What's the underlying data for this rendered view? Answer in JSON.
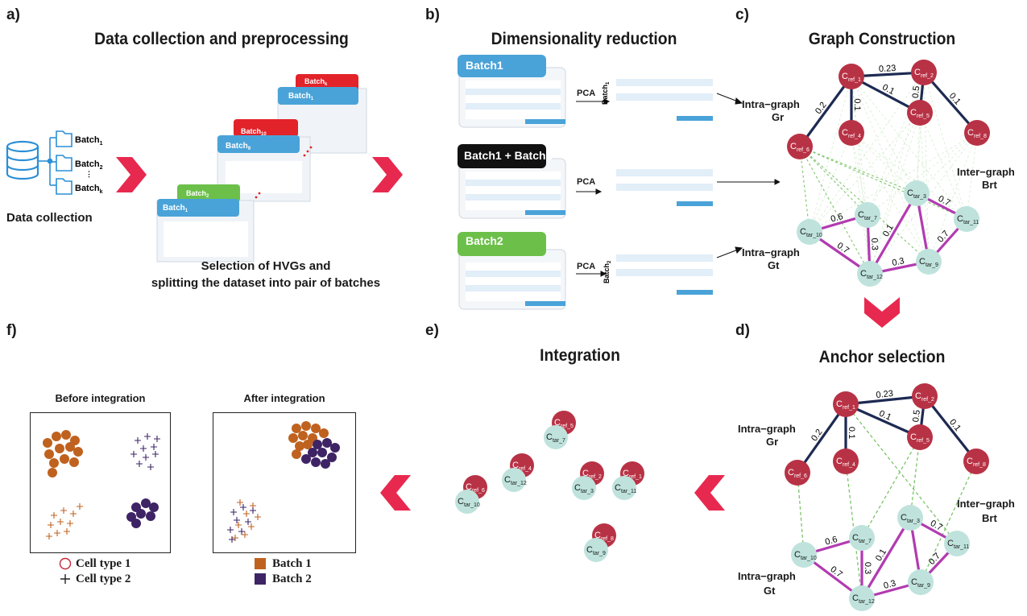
{
  "panels": {
    "a": {
      "label": "a)",
      "title": "Data collection and preprocessing",
      "data_collection": "Data collection",
      "hvg_line1": "Selection of HVGs and",
      "hvg_line2": "splitting the dataset into pair of batches",
      "folders": [
        "Batch1",
        "Batch2",
        "Batchk"
      ]
    },
    "b": {
      "label": "b)",
      "title": "Dimensionality reduction",
      "pca": "PCA",
      "tabs": [
        "Batch1",
        "Batch1 + Batch2",
        "Batch2"
      ]
    },
    "c": {
      "label": "c)",
      "title": "Graph Construction",
      "intra_r": "Intra−graph",
      "intra_r_sym": "Gr",
      "inter": "Inter−graph",
      "inter_sym": "Brt",
      "intra_t": "Intra−graph",
      "intra_t_sym": "Gt"
    },
    "d": {
      "label": "d)",
      "title": "Anchor selection",
      "intra_r": "Intra−graph",
      "intra_r_sym": "Gr",
      "inter": "Inter−graph",
      "inter_sym": "Brt",
      "intra_t": "Intra−graph",
      "intra_t_sym": "Gt"
    },
    "e": {
      "label": "e)",
      "title": "Integration"
    },
    "f": {
      "label": "f)",
      "before": "Before integration",
      "after": "After integration",
      "legend_left": [
        "Cell type 1",
        "Cell type 2"
      ],
      "legend_right": [
        "Batch 1",
        "Batch 2"
      ]
    }
  },
  "graph": {
    "ref_nodes": [
      "ref_1",
      "ref_2",
      "ref_4",
      "ref_5",
      "ref_6",
      "ref_8"
    ],
    "tar_nodes": [
      "tar_3",
      "tar_7",
      "tar_9",
      "tar_10",
      "tar_11",
      "tar_12"
    ],
    "ref_edges": [
      {
        "from": "ref_1",
        "to": "ref_2",
        "w": "0.23"
      },
      {
        "from": "ref_1",
        "to": "ref_5",
        "w": "0.1"
      },
      {
        "from": "ref_2",
        "to": "ref_5",
        "w": "0.5"
      },
      {
        "from": "ref_1",
        "to": "ref_4",
        "w": "0.1"
      },
      {
        "from": "ref_1",
        "to": "ref_6",
        "w": "0.2"
      },
      {
        "from": "ref_2",
        "to": "ref_8",
        "w": "0.1"
      }
    ],
    "tar_edges": [
      {
        "from": "tar_10",
        "to": "tar_7",
        "w": "0.6"
      },
      {
        "from": "tar_10",
        "to": "tar_12",
        "w": "0.7"
      },
      {
        "from": "tar_7",
        "to": "tar_12",
        "w": "0.3"
      },
      {
        "from": "tar_3",
        "to": "tar_12",
        "w": "0.1"
      },
      {
        "from": "tar_3",
        "to": "tar_11",
        "w": "0.7"
      },
      {
        "from": "tar_3",
        "to": "tar_9",
        "w": ""
      },
      {
        "from": "tar_11",
        "to": "tar_9",
        "w": "0.7"
      },
      {
        "from": "tar_12",
        "to": "tar_9",
        "w": "0.3"
      }
    ]
  },
  "integration_pairs": [
    [
      "ref_5",
      "tar_7"
    ],
    [
      "ref_4",
      "tar_12"
    ],
    [
      "ref_2",
      "tar_3"
    ],
    [
      "ref_1",
      "tar_11"
    ],
    [
      "ref_6",
      "tar_10"
    ],
    [
      "ref_8",
      "tar_9"
    ]
  ],
  "colors": {
    "ref": "#b83245",
    "tar": "#bfe3dc",
    "ref_edge": "#1d2a52",
    "tar_edge": "#b23bb0",
    "inter": "#7cc46a",
    "chevron": "#e8294f",
    "batch_blue": "#4aa3d8",
    "batch_green": "#6cc04a",
    "batch_red": "#e2232a",
    "orange": "#c0621f",
    "purple": "#3e2465"
  }
}
